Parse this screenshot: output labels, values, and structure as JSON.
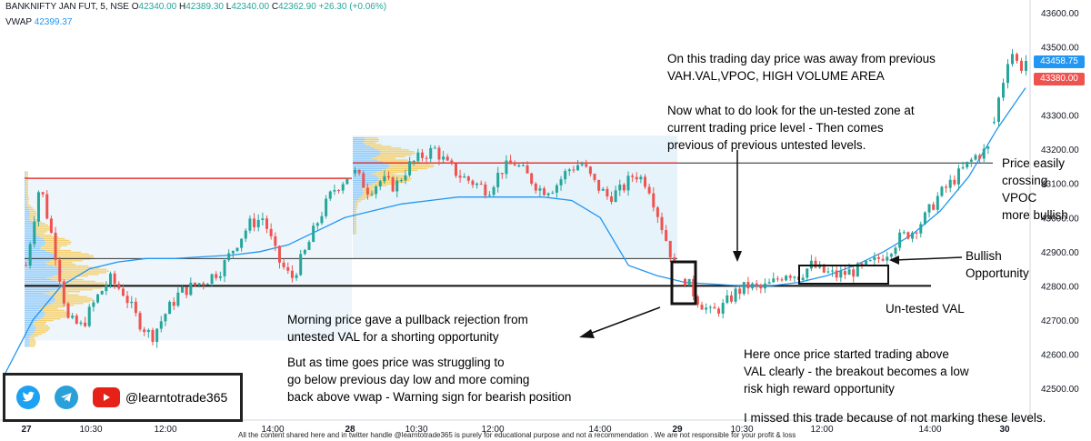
{
  "header": {
    "symbol_line": "BANKNIFTY JAN FUT, 5, NSE",
    "o_label": "O",
    "o_value": "42340.00",
    "h_label": "H",
    "h_value": "42389.30",
    "l_label": "L",
    "l_value": "42340.00",
    "c_label": "C",
    "c_value": "42362.90",
    "change": "+26.30 (+0.06%)",
    "vwap_label": "VWAP",
    "vwap_value": "42399.37"
  },
  "price_tags": {
    "current": "43458.75",
    "vwap": "43380.00",
    "current_color": "#2196f3",
    "vwap_color": "#ef5350"
  },
  "chart_data": {
    "type": "candlestick",
    "y_ticks": [
      42500,
      42600,
      42700,
      42800,
      42900,
      43000,
      43100,
      43200,
      43300,
      43400,
      43500,
      43600
    ],
    "y_tick_labels": [
      "42500.00",
      "42600.00",
      "42700.00",
      "42800.00",
      "42900.00",
      "43000.00",
      "43100.00",
      "43200.00",
      "43300.00",
      "43400.00",
      "43500.00",
      "43600.00"
    ],
    "ylim": [
      42400,
      43620
    ],
    "x_ticks": [
      "27",
      "10:30",
      "12:00",
      "14:00",
      "28",
      "10:30",
      "12:00",
      "14:00",
      "29",
      "10:30",
      "12:00",
      "14:00",
      "30"
    ],
    "x_tick_bold": [
      true,
      false,
      false,
      false,
      true,
      false,
      false,
      false,
      true,
      false,
      false,
      false,
      true
    ],
    "grid": false,
    "colors": {
      "up": "#26a69a",
      "down": "#ef5350",
      "vwap": "#2196f3",
      "profile_blue": "#90caf9",
      "profile_yellow": "#f5cf6a"
    },
    "levels": {
      "prev_vpoc": 43115,
      "untested_val": 42800,
      "day28_high_line": 43160,
      "day28_low_line": 42880
    },
    "day_closes": [
      {
        "day": "27",
        "points": [
          42860,
          43100,
          42920,
          42700,
          42680,
          42760,
          42820,
          42780,
          42700,
          42650,
          42720,
          42780,
          42800,
          42820,
          42850,
          42920,
          42980,
          43000,
          42880,
          42820,
          42900,
          43000,
          43080,
          43120
        ]
      },
      {
        "day": "28",
        "points": [
          43130,
          43080,
          43110,
          43090,
          43150,
          43180,
          43200,
          43150,
          43120,
          43100,
          43080,
          43140,
          43160,
          43120,
          43080,
          43090,
          43140,
          43160,
          43100,
          43060,
          43080,
          43130,
          43100,
          42980,
          42860
        ]
      },
      {
        "day": "29",
        "points": [
          42820,
          42760,
          42720,
          42740,
          42780,
          42800,
          42790,
          42810,
          42840,
          42830,
          42860,
          42840,
          42830,
          42840,
          42850,
          42870,
          42900,
          42940,
          42960,
          43000,
          43060,
          43100,
          43140,
          43180,
          43200
        ]
      },
      {
        "day": "30",
        "points": [
          43280,
          43360,
          43420,
          43500,
          43460,
          43440,
          43460
        ]
      }
    ],
    "vwap_series": [
      42540,
      42700,
      42800,
      42850,
      42870,
      42880,
      42880,
      42885,
      42890,
      42900,
      42920,
      42960,
      43000,
      43020,
      43040,
      43050,
      43060,
      43060,
      43060,
      43060,
      43050,
      43000,
      42860,
      42830,
      42810,
      42805,
      42800,
      42800,
      42810,
      42830,
      42860,
      42900,
      42950,
      43020,
      43120,
      43260,
      43380
    ]
  },
  "annotations": {
    "top_right": "On this trading day price was away from previous\nVAH.VAL,VPOC, HIGH VOLUME AREA\n\nNow what to do look for the un-tested zone at\ncurrent trading price level - Then comes\nprevious of previous untested levels.",
    "vpoc_note": "Price easily\ncrossing\nVPOC\nmore bullish",
    "bullish": "Bullish\nOpportunity",
    "untested_val": "Un-tested VAL",
    "morning": "Morning price gave a pullback rejection from\nuntested VAL for a shorting opportunity",
    "struggle": "But as time goes price was struggling to\ngo below previous day low and more coming\nback above vwap - Warning sign for bearish position",
    "breakout": "Here once price started trading above\nVAL clearly - the breakout becomes a low\nrisk high reward opportunity",
    "missed": "I missed this trade because of not marking these levels."
  },
  "social": {
    "twitter_icon": "twitter-icon",
    "telegram_icon": "telegram-icon",
    "youtube_icon": "youtube-icon",
    "handle": "@learntotrade365"
  },
  "disclaimer": "All the content shared here and in twitter handle @learntotrade365 is purely for educational purpose and not a recommendation . We are not responsible for your profit & loss"
}
